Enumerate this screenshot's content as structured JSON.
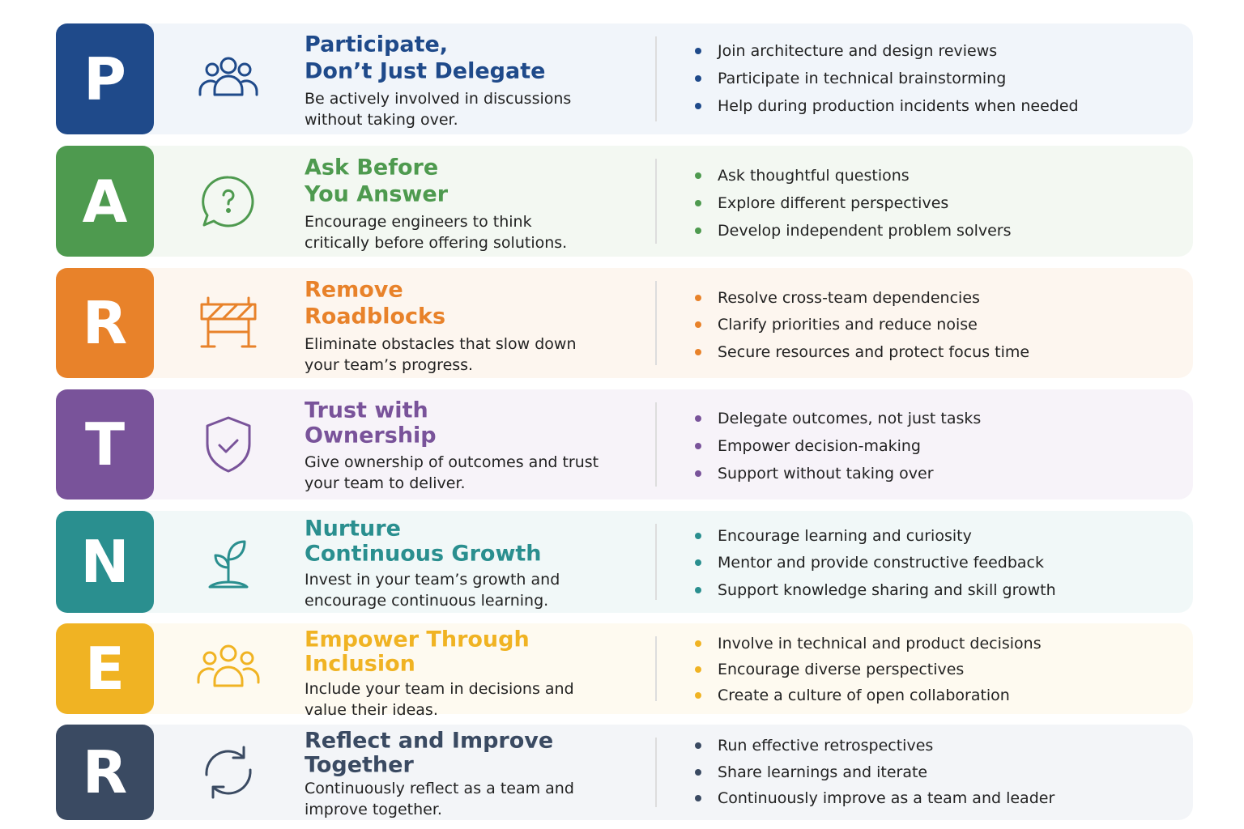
{
  "rows": [
    {
      "letter": "P",
      "title": [
        "Participate,",
        "Don’t Just Delegate"
      ],
      "description": [
        "Be actively involved in discussions",
        "without taking over."
      ],
      "bullets": [
        "Join architecture and design reviews",
        "Participate in technical brainstorming",
        "Help during production incidents when needed"
      ]
    },
    {
      "letter": "A",
      "title": [
        "Ask Before",
        "You Answer"
      ],
      "description": [
        "Encourage engineers to think",
        "critically before offering solutions."
      ],
      "bullets": [
        "Ask thoughtful questions",
        "Explore different perspectives",
        "Develop independent problem solvers"
      ]
    },
    {
      "letter": "R",
      "title": [
        "Remove",
        "Roadblocks"
      ],
      "description": [
        "Eliminate obstacles that slow down",
        "your team’s progress."
      ],
      "bullets": [
        "Resolve cross-team dependencies",
        "Clarify priorities and reduce noise",
        "Secure resources and protect focus time"
      ]
    },
    {
      "letter": "T",
      "title": [
        "Trust with",
        "Ownership"
      ],
      "description": [
        "Give ownership of outcomes and trust",
        "your team to deliver."
      ],
      "bullets": [
        "Delegate outcomes, not just tasks",
        "Empower decision-making",
        "Support without taking over"
      ]
    },
    {
      "letter": "N",
      "title": [
        "Nurture",
        "Continuous Growth"
      ],
      "description": [
        "Invest in your team’s growth and",
        "encourage continuous learning."
      ],
      "bullets": [
        "Encourage learning and curiosity",
        "Mentor and provide constructive feedback",
        "Support knowledge sharing and skill growth"
      ]
    },
    {
      "letter": "E",
      "title": [
        "Empower Through",
        "Inclusion"
      ],
      "description": [
        "Include your team in decisions and",
        "value their ideas."
      ],
      "bullets": [
        "Involve in technical and product decisions",
        "Encourage diverse perspectives",
        "Create a culture of open collaboration"
      ]
    },
    {
      "letter": "R",
      "title": [
        "Reflect and Improve",
        "Together"
      ],
      "description": [
        "Continuously reflect as a team and",
        "improve together."
      ],
      "bullets": [
        "Run effective retrospectives",
        "Share learnings and iterate",
        "Continuously improve as a team and leader"
      ]
    }
  ]
}
